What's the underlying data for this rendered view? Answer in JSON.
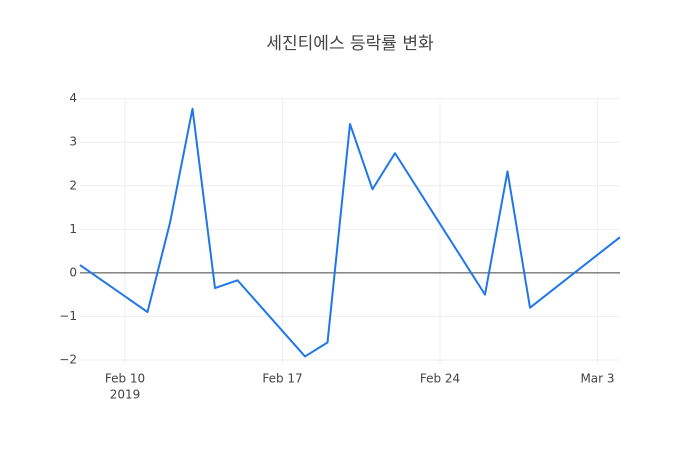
{
  "chart_data": {
    "type": "line",
    "title": "세진티에스 등락률 변화",
    "x": [
      "2019-02-08",
      "2019-02-11",
      "2019-02-12",
      "2019-02-13",
      "2019-02-14",
      "2019-02-15",
      "2019-02-18",
      "2019-02-19",
      "2019-02-20",
      "2019-02-21",
      "2019-02-22",
      "2019-02-26",
      "2019-02-27",
      "2019-02-28",
      "2019-03-04"
    ],
    "series": [
      {
        "color": "#1f77e8",
        "values": [
          0.18,
          -0.9,
          1.15,
          3.77,
          -0.35,
          -0.17,
          -1.92,
          -1.6,
          3.42,
          1.92,
          2.75,
          -0.5,
          2.33,
          -0.8,
          0.82
        ]
      }
    ],
    "xlim": [
      "2019-02-08",
      "2019-03-04"
    ],
    "xticks": [
      {
        "value": "2019-02-10",
        "label": "Feb 10",
        "sublabel": "2019"
      },
      {
        "value": "2019-02-17",
        "label": "Feb 17"
      },
      {
        "value": "2019-02-24",
        "label": "Feb 24"
      },
      {
        "value": "2019-03-03",
        "label": "Mar 3"
      }
    ],
    "ylim": [
      -2.3,
      4.2
    ],
    "yticks": [
      {
        "value": -2,
        "label": "−2"
      },
      {
        "value": -1,
        "label": "−1"
      },
      0,
      1,
      2,
      3,
      4
    ],
    "grid": true,
    "zeroline": true
  }
}
